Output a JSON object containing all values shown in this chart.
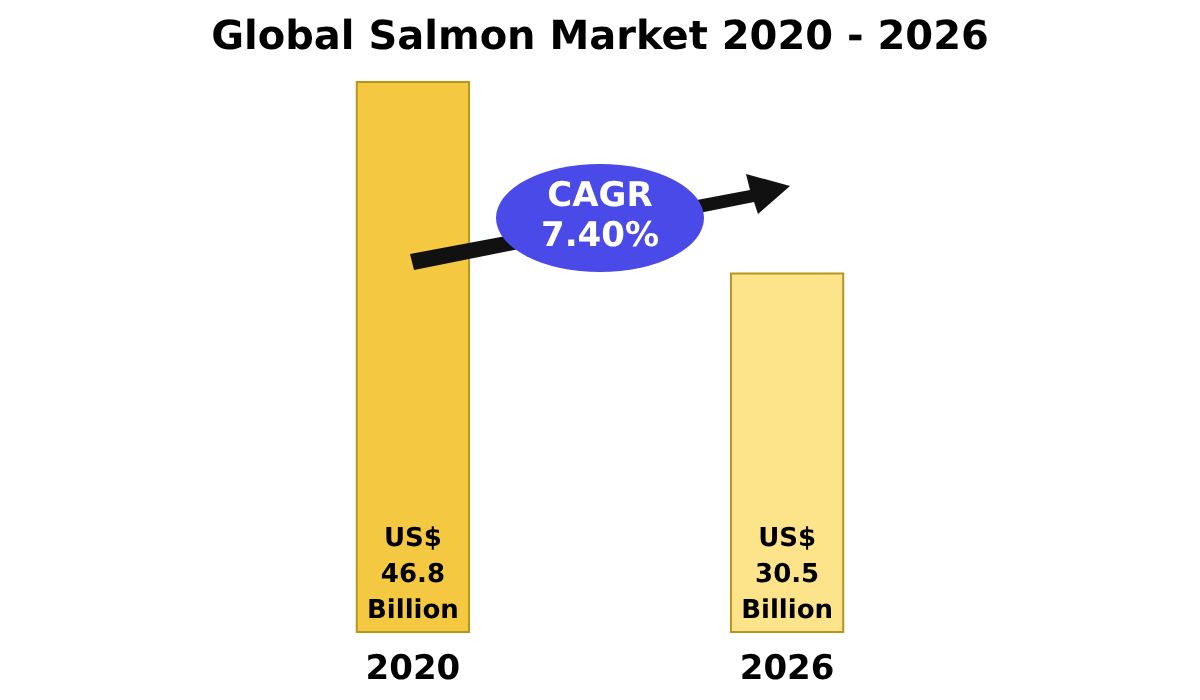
{
  "chart_data": {
    "type": "bar",
    "title": "Global Salmon Market 2020 - 2026",
    "categories": [
      "2020",
      "2026"
    ],
    "values": [
      46.8,
      30.5
    ],
    "colors": [
      "#f5c842",
      "#fde38a"
    ],
    "value_labels": [
      "US$ 46.8 Billion",
      "US$ 30.5 Billion"
    ],
    "annotations": [
      "CAGR 7.40%"
    ],
    "grid": false
  }
}
